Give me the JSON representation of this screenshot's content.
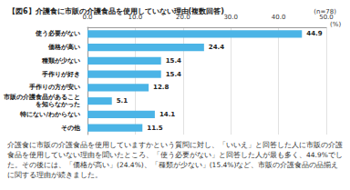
{
  "chart_data": {
    "type": "bar",
    "title": "【図6】介護食に市販の介護食品を使用していない理由(複数回答)",
    "subtitle": "(n=78)",
    "x_label": "(%)",
    "orientation": "horizontal",
    "categories": [
      "使う必要がない",
      "価格が高い",
      "種類が少ない",
      "手作りが好き",
      "手作りの方が安い",
      "市販の介護食品があることを知らなかった",
      "特にない/わからない",
      "その他"
    ],
    "values": [
      44.9,
      24.4,
      15.4,
      15.4,
      12.8,
      5.1,
      14.1,
      11.5
    ],
    "color": "#4bb4e6",
    "xlim": [
      0,
      50
    ],
    "xticks": [
      {
        "value": 0,
        "label": "0.0"
      },
      {
        "value": 10,
        "label": "10.0"
      },
      {
        "value": 20,
        "label": "20.0"
      },
      {
        "value": 30,
        "label": "30.0"
      },
      {
        "value": 40,
        "label": "40.0"
      },
      {
        "value": 50,
        "label": "50.0"
      }
    ],
    "grid": true,
    "data_labels": true,
    "annotations": [
      "介護食に市販の介護食品を使用していますかという質問に対し、「いいえ」と回答した人に市販の介護食品を使用していない理由を聞いたところ、「使う必要がない」と回答した人が最も多く、44.9%でした。その後には、「価格が高い」(24.4%)、「種類が少ない」(15.4%)など、市販の介護食品の品揃えに関する理由が続きました。"
    ]
  }
}
